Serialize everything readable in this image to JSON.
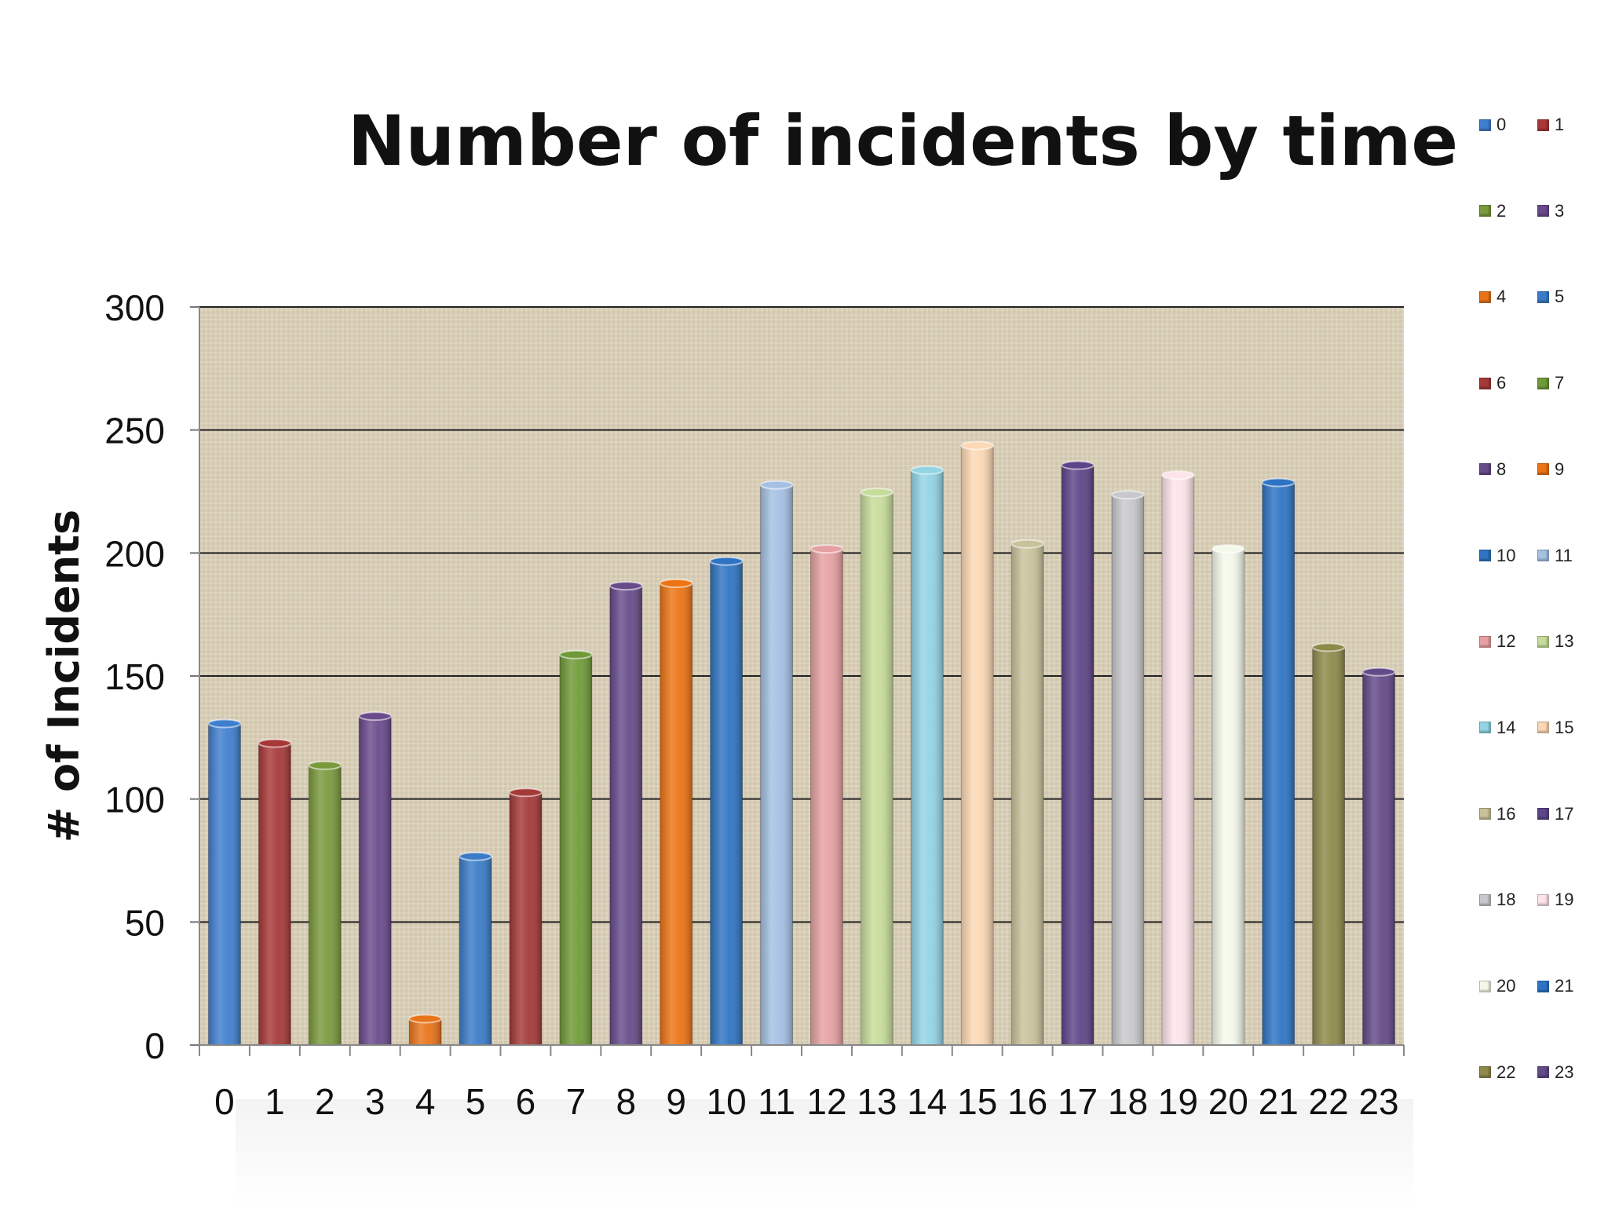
{
  "chart_data": {
    "type": "bar",
    "title": "Number of incidents by time",
    "xlabel": "",
    "ylabel": "# of Incidents",
    "ylim": [
      0,
      300
    ],
    "yticks": [
      "0",
      "50",
      "100",
      "150",
      "200",
      "250",
      "300"
    ],
    "categories": [
      "0",
      "1",
      "2",
      "3",
      "4",
      "5",
      "6",
      "7",
      "8",
      "9",
      "10",
      "11",
      "12",
      "13",
      "14",
      "15",
      "16",
      "17",
      "18",
      "19",
      "20",
      "21",
      "22",
      "23"
    ],
    "values": [
      131,
      123,
      114,
      134,
      11,
      77,
      103,
      159,
      187,
      188,
      197,
      228,
      202,
      225,
      234,
      244,
      204,
      236,
      224,
      232,
      202,
      229,
      162,
      152
    ],
    "colors": [
      "#3f7fcf",
      "#a83838",
      "#7a9a3c",
      "#6a4a8c",
      "#e8741a",
      "#3a7cc8",
      "#a43a38",
      "#6f9a38",
      "#674c8a",
      "#ec7414",
      "#2f74c2",
      "#a4c0e4",
      "#e6a0a2",
      "#c6dc9a",
      "#92d4e4",
      "#fcd8b4",
      "#c8c29a",
      "#5e4488",
      "#c8c8cc",
      "#fce4ea",
      "#f4f8ea",
      "#2e74c4",
      "#8e8a4a",
      "#634a88"
    ],
    "grid": true,
    "legend_position": "right",
    "legend": [
      "0",
      "1",
      "2",
      "3",
      "4",
      "5",
      "6",
      "7",
      "8",
      "9",
      "10",
      "11",
      "12",
      "13",
      "14",
      "15",
      "16",
      "17",
      "18",
      "19",
      "20",
      "21",
      "22",
      "23"
    ]
  }
}
